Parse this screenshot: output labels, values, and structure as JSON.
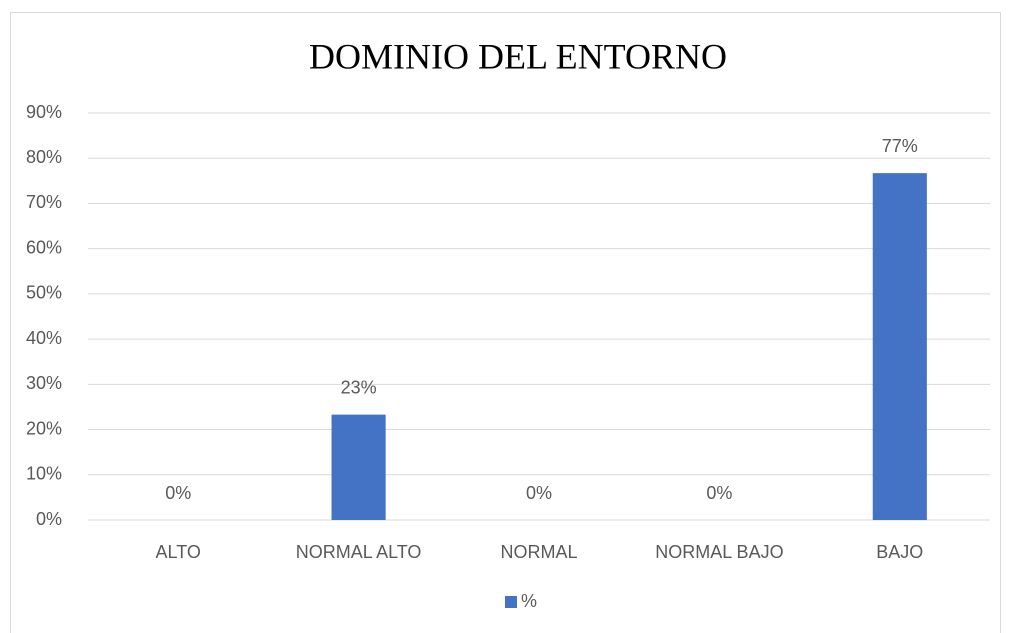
{
  "chart_data": {
    "type": "bar",
    "title": "DOMINIO DEL ENTORNO",
    "categories": [
      "ALTO",
      "NORMAL ALTO",
      "NORMAL",
      "NORMAL BAJO",
      "BAJO"
    ],
    "series": [
      {
        "name": "%",
        "color": "#4472c4",
        "values": [
          0,
          23.3,
          0,
          0,
          76.7
        ],
        "value_labels": [
          "0%",
          "23%",
          "0%",
          "0%",
          "77%"
        ]
      }
    ],
    "ylim": [
      0,
      90
    ],
    "yticks": [
      {
        "value": 0,
        "label": "0%"
      },
      {
        "value": 10,
        "label": "10%"
      },
      {
        "value": 20,
        "label": "20%"
      },
      {
        "value": 30,
        "label": "30%"
      },
      {
        "value": 40,
        "label": "40%"
      },
      {
        "value": 50,
        "label": "50%"
      },
      {
        "value": 60,
        "label": "60%"
      },
      {
        "value": 70,
        "label": "70%"
      },
      {
        "value": 80,
        "label": "80%"
      },
      {
        "value": 90,
        "label": "90%"
      }
    ],
    "grid": true,
    "legend": "bottom"
  }
}
